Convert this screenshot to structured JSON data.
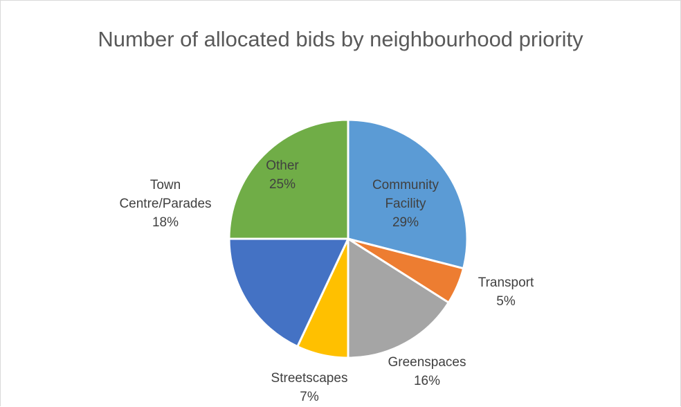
{
  "chart_data": {
    "type": "pie",
    "title": "Number of allocated bids by neighbourhood priority",
    "slices": [
      {
        "name": "Community Facility",
        "percent": 29,
        "label_lines": [
          "Community",
          "Facility",
          "29%"
        ],
        "color": "#5b9bd5",
        "label_inside": true
      },
      {
        "name": "Transport",
        "percent": 5,
        "label_lines": [
          "Transport",
          "5%"
        ],
        "color": "#ed7d31",
        "label_inside": false
      },
      {
        "name": "Greenspaces",
        "percent": 16,
        "label_lines": [
          "Greenspaces",
          "16%"
        ],
        "color": "#a5a5a5",
        "label_inside": false
      },
      {
        "name": "Streetscapes",
        "percent": 7,
        "label_lines": [
          "Streetscapes",
          "7%"
        ],
        "color": "#ffc000",
        "label_inside": false
      },
      {
        "name": "Town Centre/Parades",
        "percent": 18,
        "label_lines": [
          "Town",
          "Centre/Parades",
          "18%"
        ],
        "color": "#4472c4",
        "label_inside": false
      },
      {
        "name": "Other",
        "percent": 25,
        "label_lines": [
          "Other",
          "25%"
        ],
        "color": "#70ad47",
        "label_inside": true
      }
    ]
  }
}
